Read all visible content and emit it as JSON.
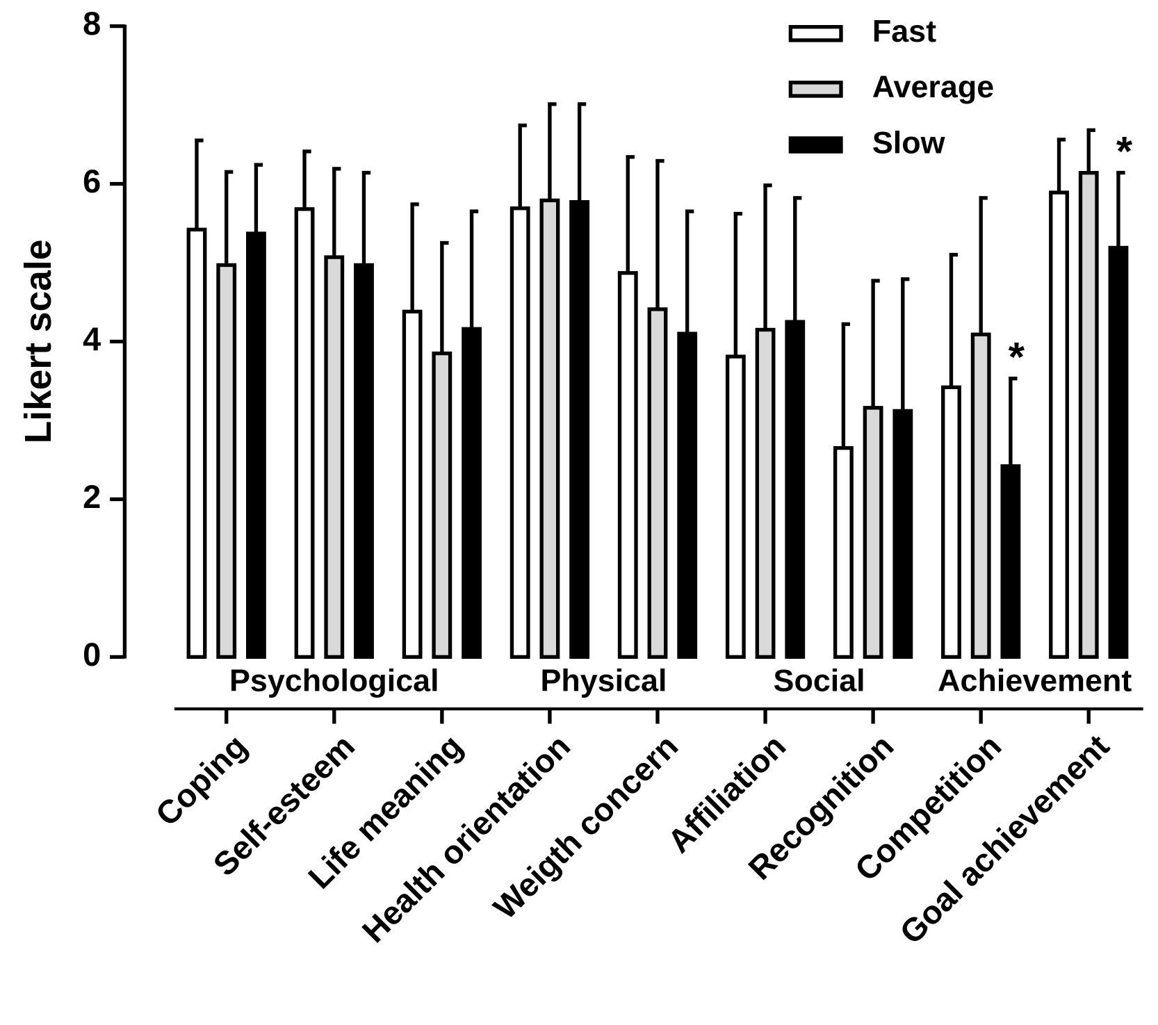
{
  "chart_data": {
    "type": "bar",
    "y_label": "Likert scale",
    "categories": [
      "Coping",
      "Self-esteem",
      "Life meaning",
      "Health orientation",
      "Weigth concern",
      "Affiliation",
      "Recognition",
      "Competition",
      "Goal achievement"
    ],
    "series": [
      {
        "name": "Fast",
        "color": "#ffffff",
        "values": [
          5.42,
          5.68,
          4.38,
          5.69,
          4.87,
          3.81,
          2.65,
          3.42,
          5.89
        ],
        "errors": [
          1.15,
          0.75,
          1.38,
          1.07,
          1.49,
          1.83,
          1.59,
          1.7,
          0.69
        ]
      },
      {
        "name": "Average",
        "color": "#d9d9d9",
        "values": [
          4.97,
          5.07,
          3.85,
          5.79,
          4.41,
          4.15,
          3.16,
          4.09,
          6.14
        ],
        "errors": [
          1.2,
          1.14,
          1.42,
          1.24,
          1.9,
          1.85,
          1.63,
          1.75,
          0.56
        ]
      },
      {
        "name": "Slow",
        "color": "#000000",
        "values": [
          5.37,
          4.97,
          4.16,
          5.77,
          4.1,
          4.25,
          3.12,
          2.42,
          5.19
        ],
        "errors": [
          0.89,
          1.19,
          1.51,
          1.26,
          1.57,
          1.59,
          1.69,
          1.13,
          0.97
        ]
      }
    ],
    "groups": [
      {
        "label": "Psychological",
        "categories": [
          "Coping",
          "Self-esteem",
          "Life meaning"
        ]
      },
      {
        "label": "Physical",
        "categories": [
          "Health orientation",
          "Weigth concern"
        ]
      },
      {
        "label": "Social",
        "categories": [
          "Affiliation",
          "Recognition"
        ]
      },
      {
        "label": "Achievement",
        "categories": [
          "Competition",
          "Goal achievement"
        ]
      }
    ],
    "annotations": [
      {
        "text": "*",
        "category": "Competition",
        "series": "Slow"
      },
      {
        "text": "*",
        "category": "Goal achievement",
        "series": "Slow"
      }
    ],
    "ylim": [
      0,
      8
    ],
    "yticks": [
      0,
      2,
      4,
      6,
      8
    ],
    "grid": false,
    "legend_position": "upper right"
  }
}
